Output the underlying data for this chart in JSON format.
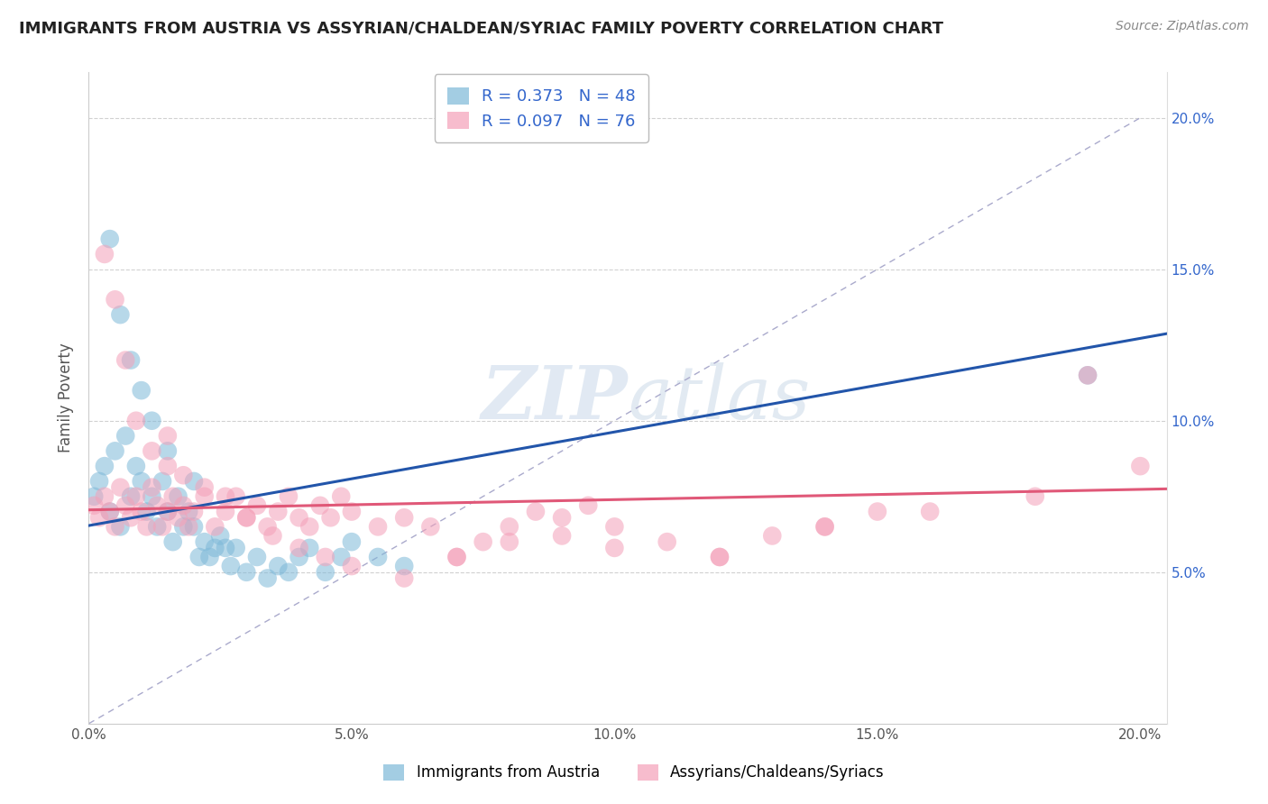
{
  "title": "IMMIGRANTS FROM AUSTRIA VS ASSYRIAN/CHALDEAN/SYRIAC FAMILY POVERTY CORRELATION CHART",
  "source": "Source: ZipAtlas.com",
  "ylabel": "Family Poverty",
  "xlim": [
    0.0,
    0.205
  ],
  "ylim": [
    0.0,
    0.215
  ],
  "xtick_vals": [
    0.0,
    0.05,
    0.1,
    0.15,
    0.2
  ],
  "xtick_labels": [
    "0.0%",
    "5.0%",
    "10.0%",
    "15.0%",
    "20.0%"
  ],
  "ytick_vals": [
    0.05,
    0.1,
    0.15,
    0.2
  ],
  "ytick_labels": [
    "5.0%",
    "10.0%",
    "15.0%",
    "20.0%"
  ],
  "blue_R": 0.373,
  "blue_N": 48,
  "pink_R": 0.097,
  "pink_N": 76,
  "blue_color": "#7db8d8",
  "pink_color": "#f4a0b8",
  "blue_line_color": "#2255aa",
  "pink_line_color": "#e05878",
  "blue_label": "Immigrants from Austria",
  "pink_label": "Assyrians/Chaldeans/Syriacs",
  "legend_text_color": "#3366cc",
  "right_ytick_color": "#3366cc",
  "blue_scatter_x": [
    0.001,
    0.002,
    0.003,
    0.004,
    0.005,
    0.006,
    0.007,
    0.008,
    0.009,
    0.01,
    0.011,
    0.012,
    0.013,
    0.014,
    0.015,
    0.016,
    0.017,
    0.018,
    0.019,
    0.02,
    0.021,
    0.022,
    0.023,
    0.024,
    0.025,
    0.026,
    0.027,
    0.028,
    0.03,
    0.032,
    0.034,
    0.036,
    0.038,
    0.04,
    0.042,
    0.045,
    0.048,
    0.05,
    0.055,
    0.06,
    0.004,
    0.006,
    0.008,
    0.01,
    0.012,
    0.015,
    0.02,
    0.19
  ],
  "blue_scatter_y": [
    0.075,
    0.08,
    0.085,
    0.07,
    0.09,
    0.065,
    0.095,
    0.075,
    0.085,
    0.08,
    0.07,
    0.075,
    0.065,
    0.08,
    0.07,
    0.06,
    0.075,
    0.065,
    0.07,
    0.065,
    0.055,
    0.06,
    0.055,
    0.058,
    0.062,
    0.058,
    0.052,
    0.058,
    0.05,
    0.055,
    0.048,
    0.052,
    0.05,
    0.055,
    0.058,
    0.05,
    0.055,
    0.06,
    0.055,
    0.052,
    0.16,
    0.135,
    0.12,
    0.11,
    0.1,
    0.09,
    0.08,
    0.115
  ],
  "pink_scatter_x": [
    0.001,
    0.002,
    0.003,
    0.004,
    0.005,
    0.006,
    0.007,
    0.008,
    0.009,
    0.01,
    0.011,
    0.012,
    0.013,
    0.014,
    0.015,
    0.016,
    0.017,
    0.018,
    0.019,
    0.02,
    0.022,
    0.024,
    0.026,
    0.028,
    0.03,
    0.032,
    0.034,
    0.036,
    0.038,
    0.04,
    0.042,
    0.044,
    0.046,
    0.048,
    0.05,
    0.055,
    0.06,
    0.065,
    0.07,
    0.075,
    0.08,
    0.085,
    0.09,
    0.095,
    0.1,
    0.11,
    0.12,
    0.13,
    0.14,
    0.15,
    0.003,
    0.005,
    0.007,
    0.009,
    0.012,
    0.015,
    0.018,
    0.022,
    0.026,
    0.03,
    0.035,
    0.04,
    0.045,
    0.05,
    0.06,
    0.07,
    0.08,
    0.09,
    0.1,
    0.12,
    0.14,
    0.16,
    0.18,
    0.19,
    0.2,
    0.015
  ],
  "pink_scatter_y": [
    0.072,
    0.068,
    0.075,
    0.07,
    0.065,
    0.078,
    0.072,
    0.068,
    0.075,
    0.07,
    0.065,
    0.078,
    0.072,
    0.065,
    0.07,
    0.075,
    0.068,
    0.072,
    0.065,
    0.07,
    0.075,
    0.065,
    0.07,
    0.075,
    0.068,
    0.072,
    0.065,
    0.07,
    0.075,
    0.068,
    0.065,
    0.072,
    0.068,
    0.075,
    0.07,
    0.065,
    0.068,
    0.065,
    0.055,
    0.06,
    0.065,
    0.07,
    0.068,
    0.072,
    0.065,
    0.06,
    0.055,
    0.062,
    0.065,
    0.07,
    0.155,
    0.14,
    0.12,
    0.1,
    0.09,
    0.085,
    0.082,
    0.078,
    0.075,
    0.068,
    0.062,
    0.058,
    0.055,
    0.052,
    0.048,
    0.055,
    0.06,
    0.062,
    0.058,
    0.055,
    0.065,
    0.07,
    0.075,
    0.115,
    0.085,
    0.095
  ]
}
